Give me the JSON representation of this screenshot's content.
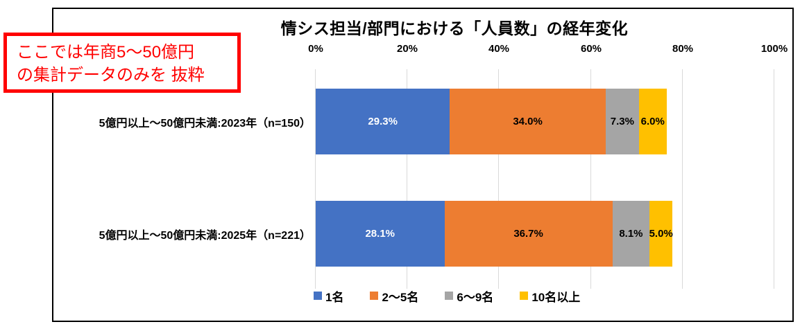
{
  "title": "情シス担当/部門における「人員数」の経年変化",
  "annotation": {
    "line1": "ここでは年商5～50億円",
    "line2": "の集計データのみを 抜粋"
  },
  "axis": {
    "ticks": [
      "0%",
      "20%",
      "40%",
      "60%",
      "80%",
      "100%"
    ]
  },
  "rows": [
    {
      "label": "5億円以上～50億円未満:2023年（n=150）",
      "segments": [
        {
          "text": "29.3%",
          "value": 29.3,
          "color": "#4472C4",
          "text_color": "#FFFFFF"
        },
        {
          "text": "34.0%",
          "value": 34.0,
          "color": "#ED7D31",
          "text_color": "#000000"
        },
        {
          "text": "7.3%",
          "value": 7.3,
          "color": "#A5A5A5",
          "text_color": "#000000"
        },
        {
          "text": "6.0%",
          "value": 6.0,
          "color": "#FFC000",
          "text_color": "#000000"
        }
      ]
    },
    {
      "label": "5億円以上～50億円未満:2025年（n=221）",
      "segments": [
        {
          "text": "28.1%",
          "value": 28.1,
          "color": "#4472C4",
          "text_color": "#FFFFFF"
        },
        {
          "text": "36.7%",
          "value": 36.7,
          "color": "#ED7D31",
          "text_color": "#000000"
        },
        {
          "text": "8.1%",
          "value": 8.1,
          "color": "#A5A5A5",
          "text_color": "#000000"
        },
        {
          "text": "5.0%",
          "value": 5.0,
          "color": "#FFC000",
          "text_color": "#000000"
        }
      ]
    }
  ],
  "legend": [
    {
      "label": "1名",
      "color": "#4472C4"
    },
    {
      "label": "2～5名",
      "color": "#ED7D31"
    },
    {
      "label": "6～9名",
      "color": "#A5A5A5"
    },
    {
      "label": "10名以上",
      "color": "#FFC000"
    }
  ],
  "chart_data": {
    "type": "bar",
    "orientation": "horizontal",
    "stacked": true,
    "title": "情シス担当/部門における「人員数」の経年変化",
    "categories": [
      "5億円以上～50億円未満:2023年（n=150）",
      "5億円以上～50億円未満:2025年（n=221）"
    ],
    "series": [
      {
        "name": "1名",
        "color": "#4472C4",
        "values": [
          29.3,
          28.1
        ]
      },
      {
        "name": "2～5名",
        "color": "#ED7D31",
        "values": [
          34.0,
          36.7
        ]
      },
      {
        "name": "6～9名",
        "color": "#A5A5A5",
        "values": [
          7.3,
          8.1
        ]
      },
      {
        "name": "10名以上",
        "color": "#FFC000",
        "values": [
          6.0,
          5.0
        ]
      }
    ],
    "xlabel": "",
    "ylabel": "",
    "xlim": [
      0,
      100
    ],
    "x_tick_labels": [
      "0%",
      "20%",
      "40%",
      "60%",
      "80%",
      "100%"
    ],
    "grid": true,
    "legend_position": "bottom",
    "data_label_format": "percent_one_decimal",
    "annotation": "ここでは年商5～50億円の集計データのみを 抜粋"
  }
}
